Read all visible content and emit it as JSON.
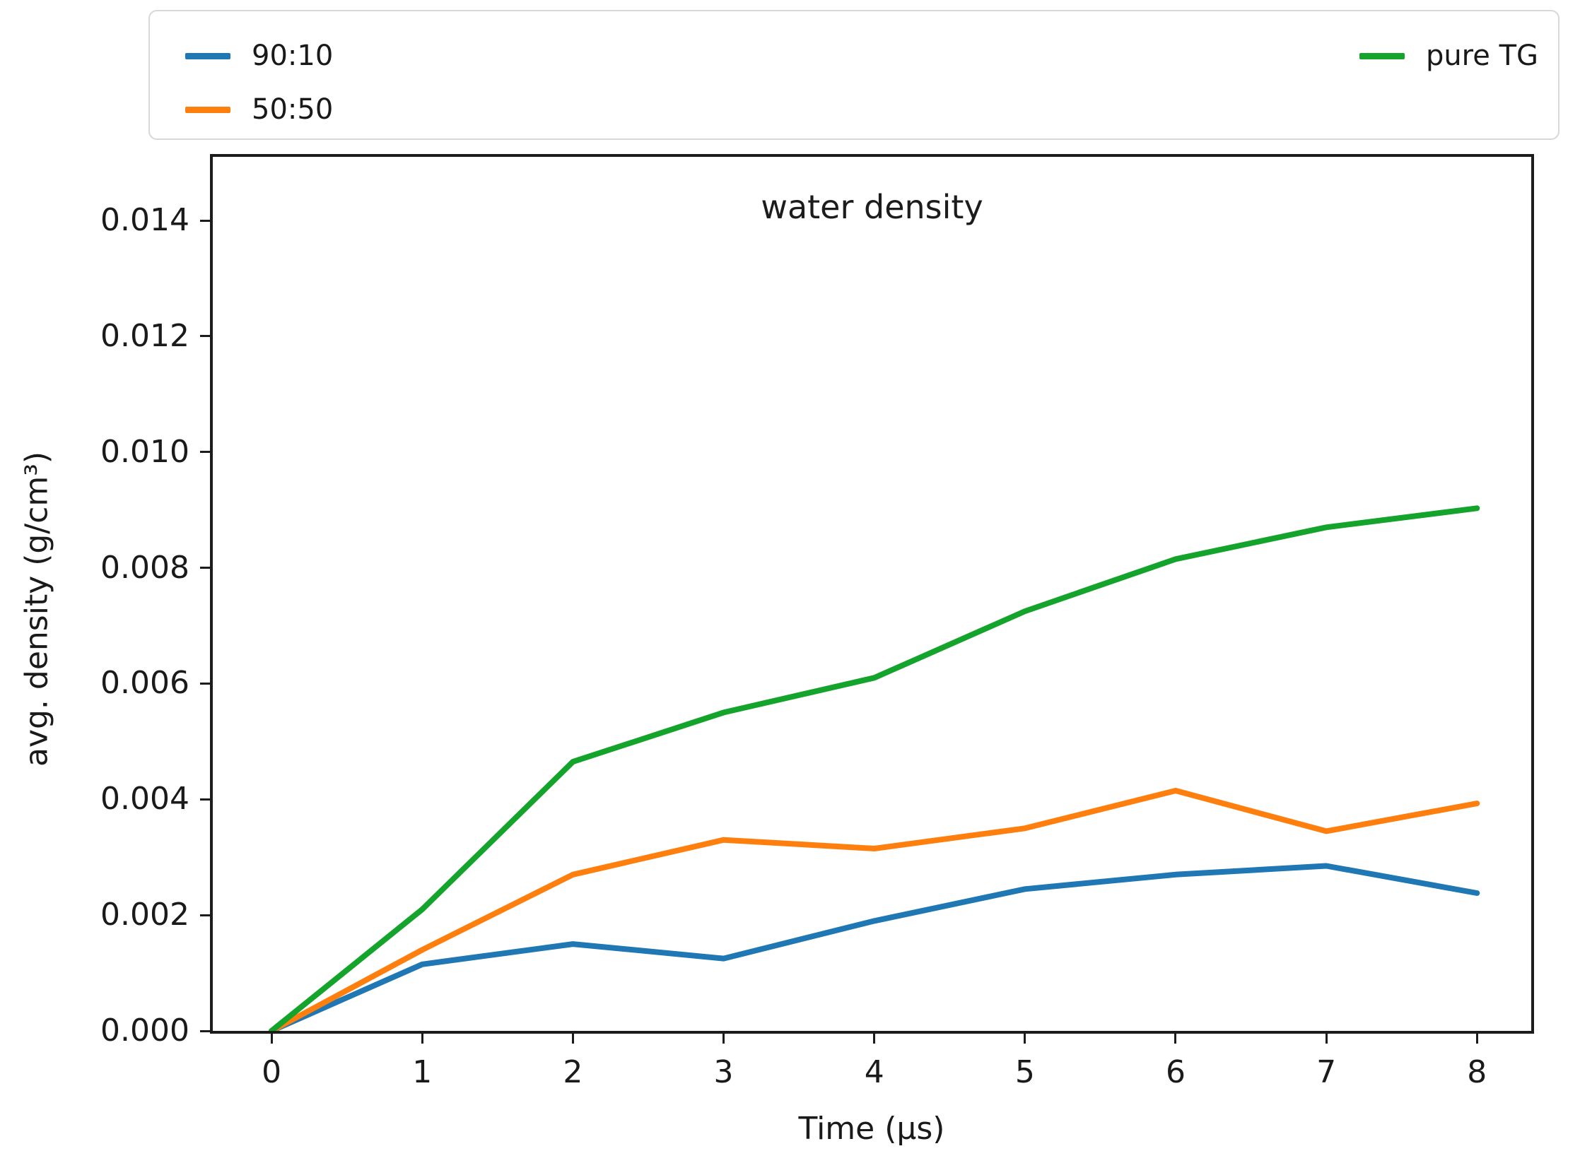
{
  "chart_data": {
    "type": "line",
    "title": "water density",
    "xlabel": "Time (μs)",
    "ylabel": "avg. density (g/cm³)",
    "x": [
      0,
      1,
      2,
      3,
      4,
      5,
      6,
      7,
      8
    ],
    "series": [
      {
        "name": "90:10",
        "color": "#1f77b4",
        "values": [
          0.0,
          0.00115,
          0.0015,
          0.00125,
          0.0019,
          0.00245,
          0.0027,
          0.00285,
          0.00238
        ]
      },
      {
        "name": "50:50",
        "color": "#ff7f0e",
        "values": [
          0.0,
          0.0014,
          0.0027,
          0.0033,
          0.00315,
          0.0035,
          0.00415,
          0.00345,
          0.00393
        ]
      },
      {
        "name": "pure TG",
        "color": "#14a42c",
        "values": [
          0.0,
          0.0021,
          0.00465,
          0.0055,
          0.0061,
          0.00725,
          0.00815,
          0.0087,
          0.00903
        ]
      }
    ],
    "xlim": [
      -0.39,
      8.36
    ],
    "ylim": [
      0,
      0.0151
    ],
    "xticks": [
      "0",
      "1",
      "2",
      "3",
      "4",
      "5",
      "6",
      "7",
      "8"
    ],
    "yticks": [
      "0.000",
      "0.002",
      "0.004",
      "0.006",
      "0.008",
      "0.010",
      "0.012",
      "0.014"
    ],
    "grid": false,
    "legend_position": "top-spanning"
  }
}
